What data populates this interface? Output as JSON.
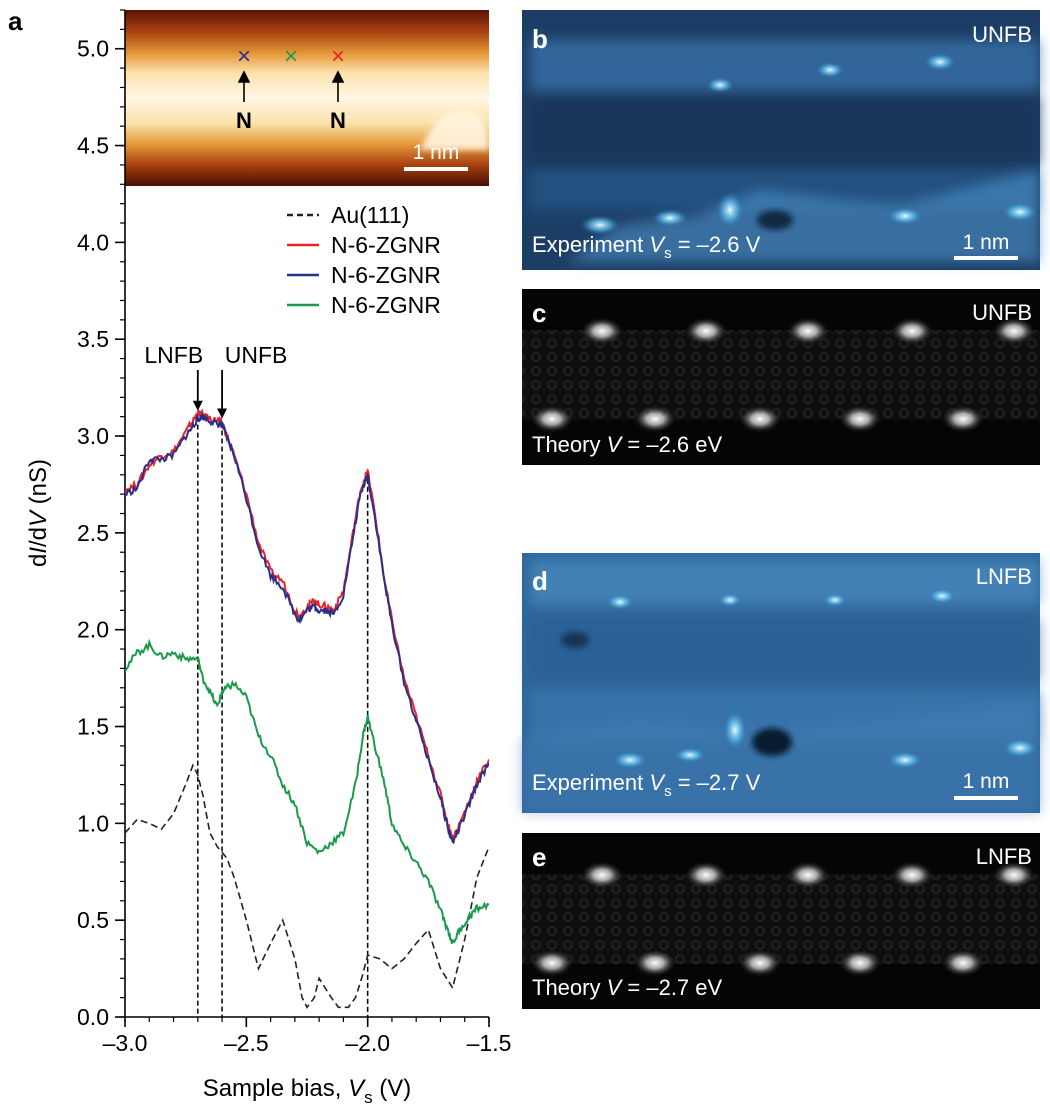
{
  "panel_labels": {
    "a": "a",
    "b": "b",
    "c": "c",
    "d": "d",
    "e": "e"
  },
  "colors": {
    "au111": "#222222",
    "red": "#e8232a",
    "blue": "#2b2f8c",
    "green": "#1b9a4b"
  },
  "inset": {
    "marker_symbol": "×",
    "atom_label_left": "N",
    "atom_label_right": "N",
    "scale_label": "1 nm"
  },
  "panels": {
    "b": {
      "corner": "UNFB",
      "caption_prefix": "Experiment ",
      "caption_var": "V",
      "caption_sub": "s",
      "caption_value": " = –2.6 V",
      "scale_label": "1 nm"
    },
    "c": {
      "corner": "UNFB",
      "caption_prefix": "Theory ",
      "caption_var": "V",
      "caption_value": " = –2.6 eV"
    },
    "d": {
      "corner": "LNFB",
      "caption_prefix": "Experiment ",
      "caption_var": "V",
      "caption_sub": "s",
      "caption_value": " = –2.7 V",
      "scale_label": "1 nm"
    },
    "e": {
      "corner": "LNFB",
      "caption_prefix": "Theory ",
      "caption_var": "V",
      "caption_value": " = –2.7 eV"
    }
  },
  "chart_data": {
    "type": "line",
    "xlabel": {
      "prefix": "Sample bias, ",
      "var": "V",
      "sub": "s",
      "suffix": " (V)"
    },
    "ylabel": {
      "p1": "d",
      "v1": "I",
      "p2": "/d",
      "v2": "V",
      "suffix": " (nS)"
    },
    "xlim": [
      -3.0,
      -1.5
    ],
    "ylim": [
      0.0,
      5.2
    ],
    "xticks": [
      -3.0,
      -2.5,
      -2.0,
      -1.5
    ],
    "xtick_labels": [
      "–3.0",
      "–2.5",
      "–2.0",
      "–1.5"
    ],
    "yticks": [
      0.0,
      0.5,
      1.0,
      1.5,
      2.0,
      2.5,
      3.0,
      3.5,
      4.0,
      4.5,
      5.0
    ],
    "ytick_labels": [
      "0.0",
      "0.5",
      "1.0",
      "1.5",
      "2.0",
      "2.5",
      "3.0",
      "3.5",
      "4.0",
      "4.5",
      "5.0"
    ],
    "annotations": [
      {
        "text": "LNFB",
        "x": -2.7,
        "arrow_tip_y": 3.11,
        "line_top_y": 3.1
      },
      {
        "text": "UNFB",
        "x": -2.6,
        "arrow_tip_y": 3.07,
        "line_top_y": 3.07
      }
    ],
    "marker_line_x": [
      -2.7,
      -2.6,
      -2.0
    ],
    "series": [
      {
        "name": "Au(111)",
        "color_key": "au111",
        "style": "dashed",
        "x": [
          -3.0,
          -2.95,
          -2.9,
          -2.85,
          -2.8,
          -2.75,
          -2.72,
          -2.7,
          -2.68,
          -2.65,
          -2.62,
          -2.6,
          -2.58,
          -2.55,
          -2.5,
          -2.45,
          -2.4,
          -2.35,
          -2.3,
          -2.27,
          -2.25,
          -2.22,
          -2.2,
          -2.15,
          -2.12,
          -2.08,
          -2.05,
          -2.02,
          -2.0,
          -1.95,
          -1.9,
          -1.85,
          -1.8,
          -1.75,
          -1.7,
          -1.65,
          -1.6,
          -1.55,
          -1.5
        ],
        "y": [
          0.95,
          1.02,
          1.0,
          0.97,
          1.05,
          1.2,
          1.3,
          1.25,
          1.15,
          0.95,
          0.88,
          0.85,
          0.82,
          0.72,
          0.5,
          0.25,
          0.38,
          0.5,
          0.3,
          0.1,
          0.05,
          0.1,
          0.2,
          0.1,
          0.05,
          0.05,
          0.1,
          0.22,
          0.32,
          0.3,
          0.25,
          0.3,
          0.38,
          0.45,
          0.25,
          0.15,
          0.4,
          0.72,
          0.88
        ]
      },
      {
        "name": "N-6-ZGNR",
        "color_key": "red",
        "style": "solid",
        "x": [
          -3.0,
          -2.95,
          -2.9,
          -2.85,
          -2.8,
          -2.75,
          -2.72,
          -2.7,
          -2.68,
          -2.65,
          -2.62,
          -2.6,
          -2.58,
          -2.55,
          -2.5,
          -2.45,
          -2.4,
          -2.35,
          -2.3,
          -2.28,
          -2.25,
          -2.22,
          -2.2,
          -2.17,
          -2.14,
          -2.1,
          -2.06,
          -2.03,
          -2.0,
          -1.97,
          -1.93,
          -1.9,
          -1.85,
          -1.8,
          -1.75,
          -1.7,
          -1.67,
          -1.65,
          -1.62,
          -1.58,
          -1.55,
          -1.5
        ],
        "y": [
          2.72,
          2.75,
          2.85,
          2.9,
          2.92,
          3.02,
          3.08,
          3.12,
          3.11,
          3.09,
          3.08,
          3.07,
          3.0,
          2.9,
          2.7,
          2.45,
          2.3,
          2.25,
          2.1,
          2.07,
          2.12,
          2.15,
          2.13,
          2.12,
          2.1,
          2.2,
          2.5,
          2.72,
          2.82,
          2.6,
          2.25,
          2.05,
          1.75,
          1.55,
          1.35,
          1.15,
          1.0,
          0.92,
          1.0,
          1.12,
          1.22,
          1.33
        ]
      },
      {
        "name": "N-6-ZGNR",
        "color_key": "blue",
        "style": "solid",
        "x": [
          -3.0,
          -2.95,
          -2.9,
          -2.85,
          -2.8,
          -2.75,
          -2.72,
          -2.7,
          -2.68,
          -2.65,
          -2.62,
          -2.6,
          -2.58,
          -2.55,
          -2.5,
          -2.45,
          -2.4,
          -2.35,
          -2.3,
          -2.28,
          -2.25,
          -2.22,
          -2.2,
          -2.17,
          -2.14,
          -2.1,
          -2.06,
          -2.03,
          -2.0,
          -1.97,
          -1.93,
          -1.9,
          -1.85,
          -1.8,
          -1.75,
          -1.7,
          -1.67,
          -1.65,
          -1.62,
          -1.58,
          -1.55,
          -1.5
        ],
        "y": [
          2.7,
          2.73,
          2.88,
          2.88,
          2.9,
          3.0,
          3.05,
          3.09,
          3.1,
          3.08,
          3.06,
          3.06,
          2.99,
          2.9,
          2.68,
          2.43,
          2.28,
          2.22,
          2.08,
          2.05,
          2.1,
          2.12,
          2.1,
          2.1,
          2.08,
          2.18,
          2.48,
          2.7,
          2.8,
          2.58,
          2.24,
          2.03,
          1.73,
          1.53,
          1.33,
          1.13,
          0.98,
          0.9,
          0.98,
          1.1,
          1.2,
          1.31
        ]
      },
      {
        "name": "N-6-ZGNR",
        "color_key": "green",
        "style": "solid",
        "x": [
          -3.0,
          -2.95,
          -2.9,
          -2.85,
          -2.8,
          -2.75,
          -2.7,
          -2.68,
          -2.65,
          -2.62,
          -2.6,
          -2.58,
          -2.55,
          -2.5,
          -2.45,
          -2.4,
          -2.35,
          -2.3,
          -2.25,
          -2.2,
          -2.15,
          -2.1,
          -2.05,
          -2.02,
          -2.0,
          -1.97,
          -1.93,
          -1.9,
          -1.85,
          -1.8,
          -1.75,
          -1.7,
          -1.67,
          -1.65,
          -1.62,
          -1.58,
          -1.55,
          -1.5
        ],
        "y": [
          1.8,
          1.88,
          1.92,
          1.86,
          1.88,
          1.85,
          1.85,
          1.75,
          1.68,
          1.6,
          1.68,
          1.7,
          1.72,
          1.65,
          1.45,
          1.35,
          1.2,
          1.1,
          0.9,
          0.85,
          0.9,
          0.95,
          1.2,
          1.45,
          1.55,
          1.4,
          1.2,
          1.0,
          0.88,
          0.8,
          0.7,
          0.55,
          0.45,
          0.38,
          0.45,
          0.52,
          0.56,
          0.58
        ]
      }
    ],
    "legend": {
      "placement": "top-right",
      "entries": [
        "Au(111)",
        "N-6-ZGNR",
        "N-6-ZGNR",
        "N-6-ZGNR"
      ]
    },
    "inset_axis": {
      "yticks": [
        4.5,
        5.0
      ],
      "ytick_labels": [
        "4.5",
        "5.0"
      ],
      "note": "STM topography inset occupying y ≈ 4.30–5.20 on the main axis"
    }
  }
}
